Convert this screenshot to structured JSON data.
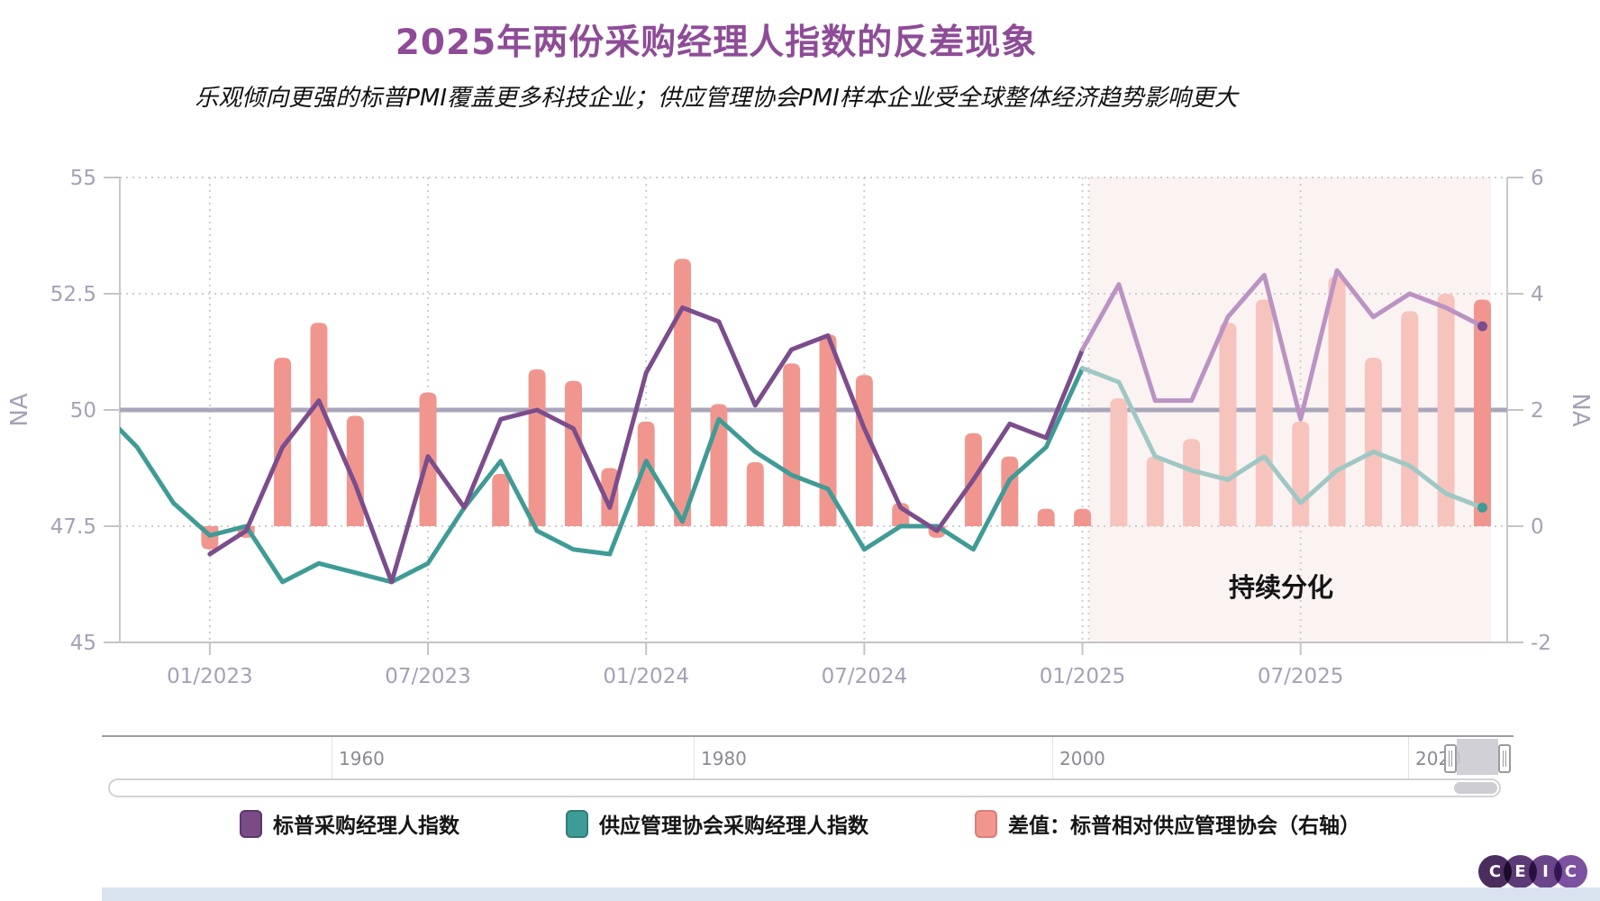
{
  "header": {
    "title": "2025年两份采购经理人指数的反差现象",
    "subtitle": "乐观倾向更强的标普PMI覆盖更多科技企业；供应管理协会PMI样本企业受全球整体经济趋势影响更大"
  },
  "chart_data": {
    "type": "mixed-line-bar",
    "left_axis": {
      "label": "NA",
      "range": [
        45,
        55
      ],
      "ticks": [
        55,
        52.5,
        50,
        47.5,
        45
      ]
    },
    "right_axis": {
      "label": "NA",
      "range": [
        -2,
        6
      ],
      "ticks": [
        6,
        4,
        2,
        0,
        -2
      ]
    },
    "x_tick_labels": [
      "01/2023",
      "07/2023",
      "01/2024",
      "07/2024",
      "01/2025",
      "07/2025"
    ],
    "baseline_left_value": 50,
    "forecast_region": {
      "start_label": "01/2025",
      "annotation": "持续分化"
    },
    "months": [
      "2022-10",
      "2022-11",
      "2022-12",
      "2023-01",
      "2023-02",
      "2023-03",
      "2023-04",
      "2023-05",
      "2023-06",
      "2023-07",
      "2023-08",
      "2023-09",
      "2023-10",
      "2023-11",
      "2023-12",
      "2024-01",
      "2024-02",
      "2024-03",
      "2024-04",
      "2024-05",
      "2024-06",
      "2024-07",
      "2024-08",
      "2024-09",
      "2024-10",
      "2024-11",
      "2024-12",
      "2025-01",
      "2025-02",
      "2025-03",
      "2025-04",
      "2025-05",
      "2025-06",
      "2025-07",
      "2025-08",
      "2025-09",
      "2025-10",
      "2025-11",
      "2025-12"
    ],
    "series": [
      {
        "name": "标普采购经理人指数",
        "type": "line",
        "axis": "left",
        "color": "#7c4d8c",
        "forecast_color": "#bb93c3",
        "values": [
          null,
          null,
          null,
          46.9,
          47.4,
          49.2,
          50.2,
          48.4,
          46.3,
          49.0,
          47.9,
          49.8,
          50.0,
          49.6,
          47.9,
          50.8,
          52.2,
          51.9,
          50.1,
          51.3,
          51.6,
          49.6,
          47.9,
          47.4,
          48.5,
          49.7,
          49.4,
          51.3,
          52.7,
          50.2,
          50.2,
          52.0,
          52.9,
          49.8,
          53.0,
          52.0,
          52.5,
          52.2,
          51.8
        ]
      },
      {
        "name": "供应管理协会采购经理人指数",
        "type": "line",
        "axis": "left",
        "color": "#3f9b96",
        "forecast_color": "#9fc8c4",
        "values": [
          50.0,
          49.2,
          48.0,
          47.3,
          47.5,
          46.3,
          46.7,
          46.5,
          46.3,
          46.7,
          47.9,
          48.9,
          47.4,
          47.0,
          46.9,
          48.9,
          47.6,
          49.8,
          49.1,
          48.6,
          48.3,
          47.0,
          47.5,
          47.5,
          47.0,
          48.5,
          49.2,
          50.9,
          50.6,
          49.0,
          48.7,
          48.5,
          49.0,
          48.0,
          48.7,
          49.1,
          48.8,
          48.2,
          47.9
        ]
      },
      {
        "name": "差值：标普相对供应管理协会（右轴）",
        "type": "bar",
        "axis": "right",
        "color": "#f0968e",
        "forecast_color": "#f6c3bd",
        "values": [
          null,
          null,
          null,
          -0.4,
          -0.2,
          2.9,
          3.5,
          1.9,
          0,
          2.3,
          0,
          0.9,
          2.7,
          2.5,
          1.0,
          1.8,
          4.6,
          2.1,
          1.1,
          2.8,
          3.3,
          2.6,
          0.4,
          -0.2,
          1.6,
          1.2,
          0.3,
          0.3,
          2.2,
          1.2,
          1.5,
          3.5,
          3.9,
          1.8,
          4.3,
          2.9,
          3.7,
          4.0,
          3.9
        ]
      }
    ]
  },
  "legend": {
    "items": [
      {
        "label": "标普采购经理人指数",
        "color": "#7a4b87",
        "border": "#5d3769"
      },
      {
        "label": "供应管理协会采购经理人指数",
        "color": "#3f9b96",
        "border": "#2f7d78"
      },
      {
        "label": "差值：标普相对供应管理协会（右轴）",
        "color": "#f0968e",
        "border": "#d97f76"
      }
    ]
  },
  "navigator": {
    "years": [
      "1960",
      "1980",
      "2000",
      "2020"
    ]
  },
  "logo": {
    "letters": [
      "C",
      "E",
      "I",
      "C"
    ],
    "colors": [
      "#4a2d5e",
      "#5c3a76",
      "#6b4589",
      "#7b51a0"
    ]
  }
}
